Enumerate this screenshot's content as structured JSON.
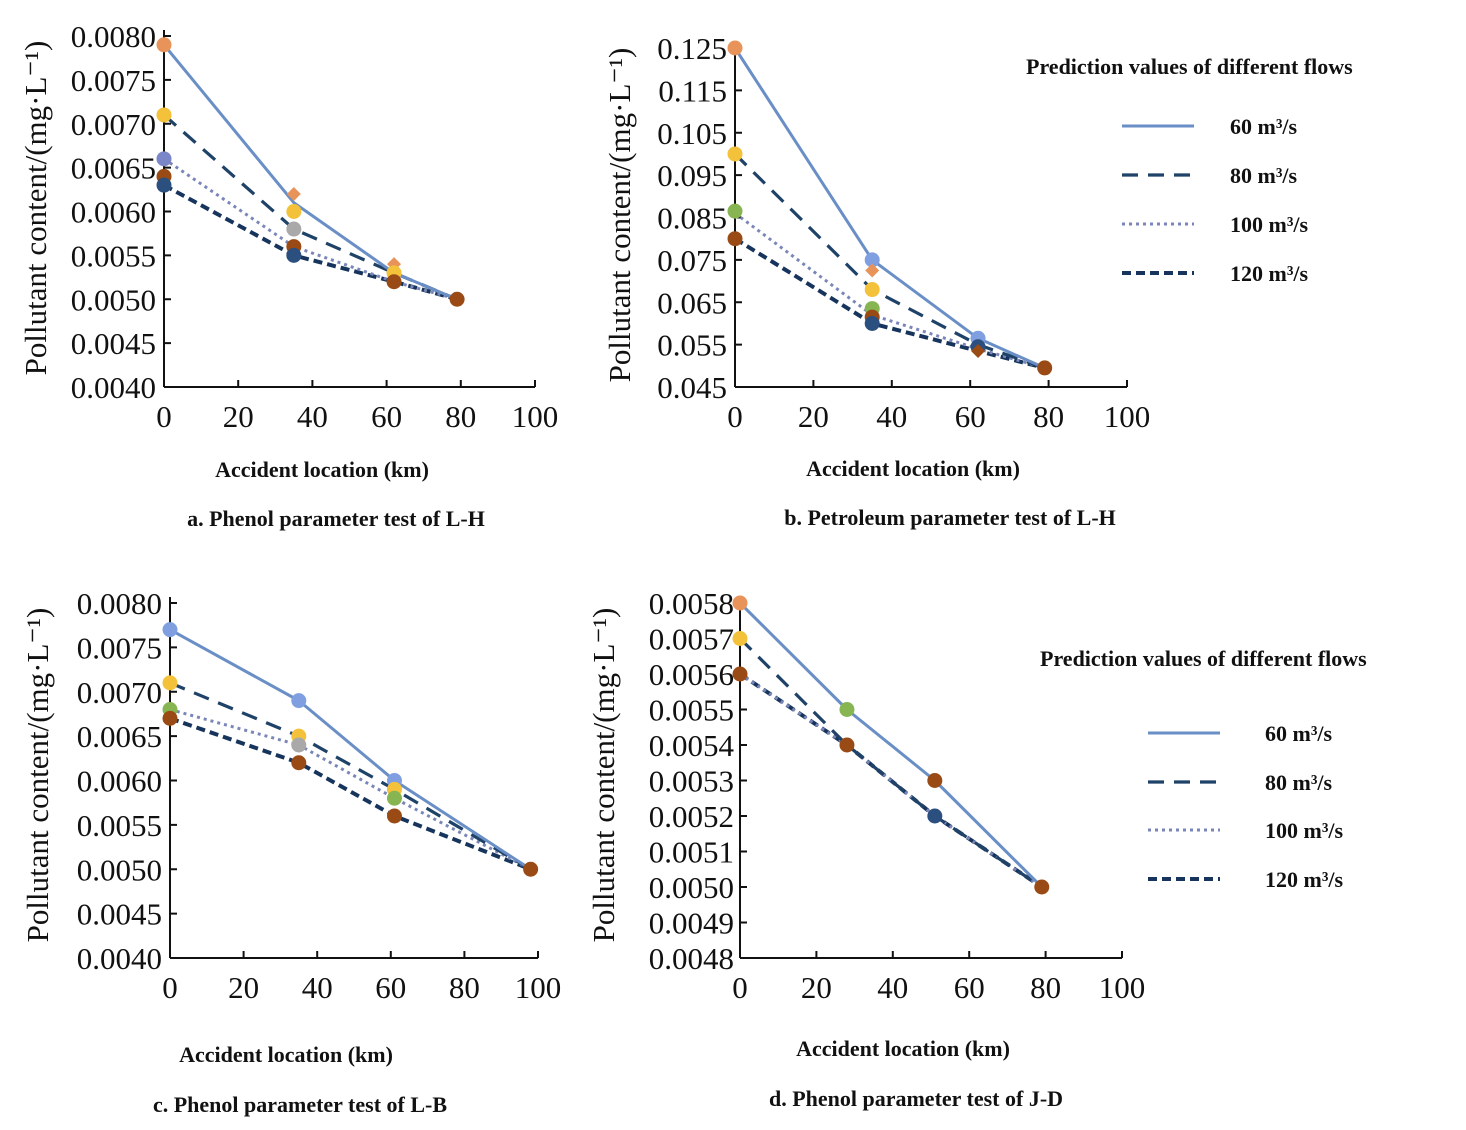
{
  "colors": {
    "s60": "#6a8fc6",
    "s80": "#1f4268",
    "s100": "#7a86b8",
    "s120": "#17355c",
    "orange": "#e8935a",
    "yellow": "#f3c23a",
    "purple": "#7b86c9",
    "gray": "#a9a9a9",
    "brown": "#9a4a14",
    "blue": "#7f9fe0",
    "green": "#86b552",
    "navy": "#2b4f7e"
  },
  "legends": [
    {
      "title": "Prediction values of different flows",
      "items": [
        {
          "label": "60 m³/s",
          "style": "solid"
        },
        {
          "label": "80 m³/s",
          "style": "dashed"
        },
        {
          "label": "100 m³/s",
          "style": "dotted"
        },
        {
          "label": "120 m³/s",
          "style": "dashed-short"
        }
      ]
    },
    {
      "title": "Prediction values of different flows",
      "items": [
        {
          "label": "60 m³/s",
          "style": "solid"
        },
        {
          "label": "80 m³/s",
          "style": "dashed"
        },
        {
          "label": "100 m³/s",
          "style": "dotted"
        },
        {
          "label": "120 m³/s",
          "style": "dashed-short"
        }
      ]
    }
  ],
  "chart_data": [
    {
      "type": "line",
      "title": "a. Phenol parameter test of L-H",
      "xlabel": "Accident location (km)",
      "ylabel": "Pollutant content/(mg·L⁻¹)",
      "xlim": [
        0,
        100
      ],
      "ylim": [
        0.004,
        0.008
      ],
      "xticks": [
        "0",
        "20",
        "40",
        "60",
        "80",
        "100"
      ],
      "yticks": [
        "0.0040",
        "0.0045",
        "0.0050",
        "0.0055",
        "0.0060",
        "0.0065",
        "0.0070",
        "0.0075",
        "0.0080"
      ],
      "series": [
        {
          "name": "60 m³/s",
          "x": [
            0,
            35,
            62,
            79
          ],
          "values": [
            0.0079,
            0.0061,
            0.0053,
            0.005
          ]
        },
        {
          "name": "80 m³/s",
          "x": [
            0,
            35,
            62,
            79
          ],
          "values": [
            0.0071,
            0.0058,
            0.0053,
            0.005
          ]
        },
        {
          "name": "100 m³/s",
          "x": [
            0,
            35,
            62,
            79
          ],
          "values": [
            0.0066,
            0.0056,
            0.0052,
            0.005
          ]
        },
        {
          "name": "120 m³/s",
          "x": [
            0,
            35,
            62,
            79
          ],
          "values": [
            0.0063,
            0.0055,
            0.0052,
            0.005
          ]
        }
      ],
      "markers": [
        {
          "x": 0,
          "y": 0.0079,
          "color": "orange"
        },
        {
          "x": 0,
          "y": 0.0071,
          "color": "yellow"
        },
        {
          "x": 0,
          "y": 0.0066,
          "color": "purple"
        },
        {
          "x": 0,
          "y": 0.0064,
          "color": "brown"
        },
        {
          "x": 0,
          "y": 0.0063,
          "color": "navy"
        },
        {
          "x": 35,
          "y": 0.0062,
          "color": "orange",
          "shape": "diamond"
        },
        {
          "x": 35,
          "y": 0.006,
          "color": "yellow"
        },
        {
          "x": 35,
          "y": 0.0058,
          "color": "gray"
        },
        {
          "x": 35,
          "y": 0.0056,
          "color": "brown"
        },
        {
          "x": 35,
          "y": 0.0055,
          "color": "navy"
        },
        {
          "x": 62,
          "y": 0.0054,
          "color": "orange",
          "shape": "diamond"
        },
        {
          "x": 62,
          "y": 0.0053,
          "color": "yellow"
        },
        {
          "x": 62,
          "y": 0.0052,
          "color": "brown"
        },
        {
          "x": 79,
          "y": 0.005,
          "color": "brown"
        }
      ]
    },
    {
      "type": "line",
      "title": "b. Petroleum parameter test of L-H",
      "xlabel": "Accident location (km)",
      "ylabel": "Pollutant content/(mg·L⁻¹)",
      "xlim": [
        0,
        100
      ],
      "ylim": [
        0.045,
        0.125
      ],
      "xticks": [
        "0",
        "20",
        "40",
        "60",
        "80",
        "100"
      ],
      "yticks": [
        "0.045",
        "0.055",
        "0.065",
        "0.075",
        "0.085",
        "0.095",
        "0.105",
        "0.115",
        "0.125"
      ],
      "series": [
        {
          "name": "60 m³/s",
          "x": [
            0,
            35,
            62,
            79
          ],
          "values": [
            0.125,
            0.075,
            0.0565,
            0.0495
          ]
        },
        {
          "name": "80 m³/s",
          "x": [
            0,
            35,
            62,
            79
          ],
          "values": [
            0.1,
            0.068,
            0.055,
            0.0495
          ]
        },
        {
          "name": "100 m³/s",
          "x": [
            0,
            35,
            62,
            79
          ],
          "values": [
            0.086,
            0.062,
            0.054,
            0.0495
          ]
        },
        {
          "name": "120 m³/s",
          "x": [
            0,
            35,
            62,
            79
          ],
          "values": [
            0.08,
            0.06,
            0.0535,
            0.0495
          ]
        }
      ],
      "markers": [
        {
          "x": 0,
          "y": 0.125,
          "color": "orange"
        },
        {
          "x": 0,
          "y": 0.1,
          "color": "yellow"
        },
        {
          "x": 0,
          "y": 0.0865,
          "color": "green"
        },
        {
          "x": 0,
          "y": 0.08,
          "color": "brown"
        },
        {
          "x": 35,
          "y": 0.075,
          "color": "blue"
        },
        {
          "x": 35,
          "y": 0.0725,
          "color": "orange",
          "shape": "diamond"
        },
        {
          "x": 35,
          "y": 0.068,
          "color": "yellow"
        },
        {
          "x": 35,
          "y": 0.0635,
          "color": "green"
        },
        {
          "x": 35,
          "y": 0.0615,
          "color": "brown"
        },
        {
          "x": 35,
          "y": 0.06,
          "color": "navy"
        },
        {
          "x": 62,
          "y": 0.0565,
          "color": "blue"
        },
        {
          "x": 62,
          "y": 0.0545,
          "color": "navy"
        },
        {
          "x": 62,
          "y": 0.0535,
          "color": "brown",
          "shape": "diamond"
        },
        {
          "x": 79,
          "y": 0.0495,
          "color": "brown"
        }
      ]
    },
    {
      "type": "line",
      "title": "c. Phenol parameter test of L-B",
      "xlabel": "Accident location (km)",
      "ylabel": "Pollutant content/(mg·L⁻¹)",
      "xlim": [
        0,
        100
      ],
      "ylim": [
        0.004,
        0.008
      ],
      "xticks": [
        "0",
        "20",
        "40",
        "60",
        "80",
        "100"
      ],
      "yticks": [
        "0.0040",
        "0.0045",
        "0.0050",
        "0.0055",
        "0.0060",
        "0.0065",
        "0.0070",
        "0.0075",
        "0.0080"
      ],
      "series": [
        {
          "name": "60 m³/s",
          "x": [
            0,
            35,
            61,
            98
          ],
          "values": [
            0.0077,
            0.0069,
            0.006,
            0.005
          ]
        },
        {
          "name": "80 m³/s",
          "x": [
            0,
            35,
            61,
            98
          ],
          "values": [
            0.0071,
            0.0065,
            0.0059,
            0.005
          ]
        },
        {
          "name": "100 m³/s",
          "x": [
            0,
            35,
            61,
            98
          ],
          "values": [
            0.0068,
            0.0064,
            0.0058,
            0.005
          ]
        },
        {
          "name": "120 m³/s",
          "x": [
            0,
            35,
            61,
            98
          ],
          "values": [
            0.0067,
            0.0062,
            0.0056,
            0.005
          ]
        }
      ],
      "markers": [
        {
          "x": 0,
          "y": 0.0077,
          "color": "blue"
        },
        {
          "x": 0,
          "y": 0.0071,
          "color": "yellow"
        },
        {
          "x": 0,
          "y": 0.0068,
          "color": "green"
        },
        {
          "x": 0,
          "y": 0.0067,
          "color": "brown"
        },
        {
          "x": 35,
          "y": 0.0069,
          "color": "blue"
        },
        {
          "x": 35,
          "y": 0.0065,
          "color": "yellow"
        },
        {
          "x": 35,
          "y": 0.0064,
          "color": "gray"
        },
        {
          "x": 35,
          "y": 0.0062,
          "color": "brown"
        },
        {
          "x": 61,
          "y": 0.006,
          "color": "blue"
        },
        {
          "x": 61,
          "y": 0.0059,
          "color": "yellow"
        },
        {
          "x": 61,
          "y": 0.0058,
          "color": "green"
        },
        {
          "x": 61,
          "y": 0.0056,
          "color": "brown"
        },
        {
          "x": 98,
          "y": 0.005,
          "color": "brown"
        }
      ]
    },
    {
      "type": "line",
      "title": "d. Phenol parameter test of J-D",
      "xlabel": "Accident location (km)",
      "ylabel": "Pollutant content/(mg·L⁻¹)",
      "xlim": [
        0,
        100
      ],
      "ylim": [
        0.0048,
        0.0058
      ],
      "xticks": [
        "0",
        "20",
        "40",
        "60",
        "80",
        "100"
      ],
      "yticks": [
        "0.0048",
        "0.0049",
        "0.0050",
        "0.0051",
        "0.0052",
        "0.0053",
        "0.0054",
        "0.0055",
        "0.0056",
        "0.0057",
        "0.0058"
      ],
      "series": [
        {
          "name": "60 m³/s",
          "x": [
            0,
            28,
            51,
            79
          ],
          "values": [
            0.0058,
            0.0055,
            0.0053,
            0.005
          ]
        },
        {
          "name": "80 m³/s",
          "x": [
            0,
            28,
            51,
            79
          ],
          "values": [
            0.0057,
            0.0054,
            0.0052,
            0.005
          ]
        },
        {
          "name": "100 m³/s",
          "x": [
            0,
            28,
            51,
            79
          ],
          "values": [
            0.0056,
            0.0054,
            0.0052,
            0.005
          ]
        },
        {
          "name": "120 m³/s",
          "x": [
            0,
            28,
            51,
            79
          ],
          "values": [
            0.0056,
            0.0054,
            0.0052,
            0.005
          ]
        }
      ],
      "markers": [
        {
          "x": 0,
          "y": 0.0058,
          "color": "orange"
        },
        {
          "x": 0,
          "y": 0.0057,
          "color": "yellow"
        },
        {
          "x": 0,
          "y": 0.0056,
          "color": "brown"
        },
        {
          "x": 28,
          "y": 0.0055,
          "color": "green"
        },
        {
          "x": 28,
          "y": 0.0054,
          "color": "brown"
        },
        {
          "x": 51,
          "y": 0.0053,
          "color": "brown"
        },
        {
          "x": 51,
          "y": 0.0052,
          "color": "navy"
        },
        {
          "x": 79,
          "y": 0.005,
          "color": "brown"
        }
      ]
    }
  ]
}
